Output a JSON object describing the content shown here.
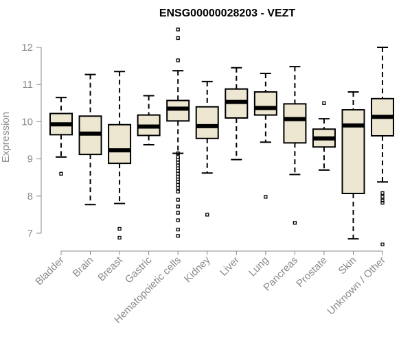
{
  "chart_data": {
    "type": "boxplot",
    "title": "ENSG00000028203 - VEZT",
    "xlabel": "",
    "ylabel": "Expression",
    "ylim": [
      6.6,
      12.7
    ],
    "yticks": [
      7,
      8,
      9,
      10,
      11,
      12
    ],
    "grid": false,
    "box_fill": "#ede7d2",
    "box_stroke": "#000000",
    "axis_color": "#8a8a8a",
    "categories": [
      "Bladder",
      "Brain",
      "Breast",
      "Gastric",
      "Hematopoietic cells",
      "Kidney",
      "Liver",
      "Lung",
      "Pancreas",
      "Prostate",
      "Skin",
      "Unknown / Other"
    ],
    "boxes": [
      {
        "min": 9.05,
        "q1": 9.65,
        "median": 9.93,
        "q3": 10.22,
        "max": 10.65,
        "outliers": [
          8.6
        ]
      },
      {
        "min": 7.77,
        "q1": 9.12,
        "median": 9.68,
        "q3": 10.15,
        "max": 11.27,
        "outliers": []
      },
      {
        "min": 7.8,
        "q1": 8.88,
        "median": 9.23,
        "q3": 9.92,
        "max": 11.35,
        "outliers": [
          7.12,
          6.88
        ]
      },
      {
        "min": 9.38,
        "q1": 9.63,
        "median": 9.87,
        "q3": 10.18,
        "max": 10.7,
        "outliers": []
      },
      {
        "min": 9.15,
        "q1": 10.02,
        "median": 10.35,
        "q3": 10.57,
        "max": 11.37,
        "outliers": [
          12.48,
          12.25,
          11.65,
          9.15,
          9.05,
          8.98,
          8.9,
          8.82,
          8.75,
          8.68,
          8.6,
          8.52,
          8.45,
          8.38,
          8.3,
          8.22,
          8.12,
          7.9,
          7.72,
          7.55,
          7.35,
          7.1,
          6.93
        ]
      },
      {
        "min": 8.62,
        "q1": 9.55,
        "median": 9.88,
        "q3": 10.4,
        "max": 11.08,
        "outliers": [
          7.5
        ]
      },
      {
        "min": 8.98,
        "q1": 10.1,
        "median": 10.53,
        "q3": 10.88,
        "max": 11.45,
        "outliers": []
      },
      {
        "min": 9.45,
        "q1": 10.18,
        "median": 10.37,
        "q3": 10.8,
        "max": 11.3,
        "outliers": [
          7.98
        ]
      },
      {
        "min": 8.58,
        "q1": 9.43,
        "median": 10.07,
        "q3": 10.48,
        "max": 11.48,
        "outliers": [
          7.28
        ]
      },
      {
        "min": 8.7,
        "q1": 9.32,
        "median": 9.55,
        "q3": 9.8,
        "max": 10.08,
        "outliers": [
          10.5
        ]
      },
      {
        "min": 6.85,
        "q1": 8.07,
        "median": 9.9,
        "q3": 10.32,
        "max": 10.8,
        "outliers": []
      },
      {
        "min": 8.38,
        "q1": 9.62,
        "median": 10.13,
        "q3": 10.62,
        "max": 12.0,
        "outliers": [
          8.08,
          7.98,
          7.88,
          7.82,
          6.7
        ]
      }
    ]
  }
}
